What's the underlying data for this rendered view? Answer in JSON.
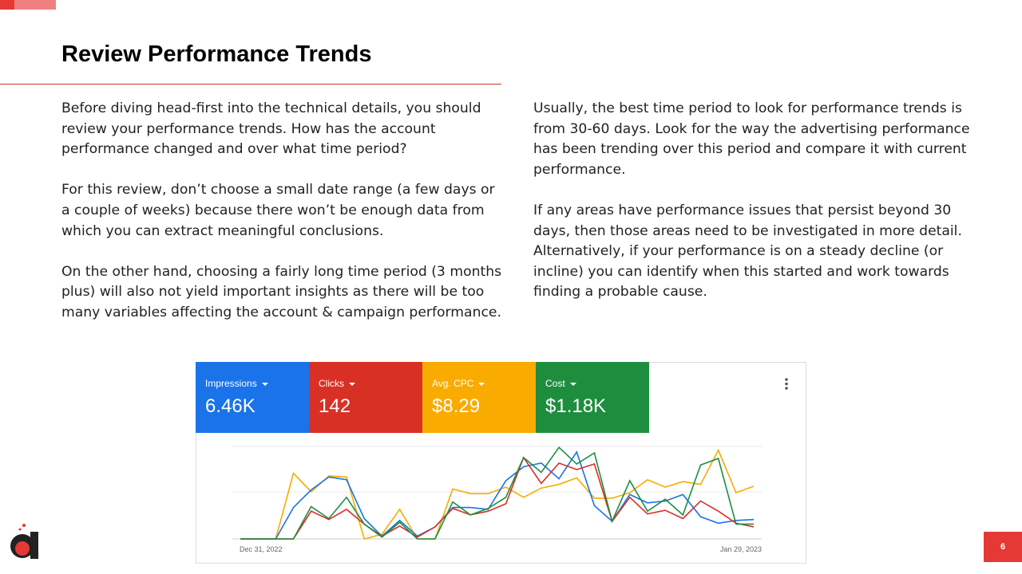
{
  "title": "Review Performance Trends",
  "left_paragraphs": [
    "Before diving head-first into the technical details, you should review your performance trends. How has the account performance changed and over what time period?",
    "For this review, don’t choose a small date range (a few days or a couple of weeks) because there won’t be enough data from which you can extract meaningful conclusions.",
    "On the other hand, choosing a fairly long time period (3 months plus) will also not yield important insights as there will be too many variables affecting the account & campaign performance."
  ],
  "right_paragraphs": [
    "Usually, the best time period to look for performance trends is from 30-60 days. Look for the way the advertising performance has been trending over this period and compare it with current performance.",
    "If any areas have performance issues that persist beyond 30 days, then those areas need to be investigated in more detail. Alternatively, if your performance is on a steady decline (or incline) you can identify when this started and work towards finding a probable cause."
  ],
  "metrics": [
    {
      "label": "Impressions",
      "value": "6.46K",
      "color": "#1a73e8"
    },
    {
      "label": "Clicks",
      "value": "142",
      "color": "#d93025"
    },
    {
      "label": "Avg. CPC",
      "value": "$8.29",
      "color": "#f9ab00"
    },
    {
      "label": "Cost",
      "value": "$1.18K",
      "color": "#1e8e3e"
    }
  ],
  "page_number": "6",
  "chart_data": {
    "type": "line",
    "categories": [
      "Dec 31, 2022",
      null,
      null,
      null,
      null,
      null,
      null,
      null,
      null,
      null,
      null,
      null,
      null,
      null,
      null,
      null,
      null,
      null,
      null,
      null,
      null,
      null,
      null,
      null,
      null,
      null,
      null,
      null,
      null,
      "Jan 29, 2023"
    ],
    "ylim": [
      0,
      100
    ],
    "series": [
      {
        "name": "Avg. CPC",
        "color": "#f9ab00",
        "values": [
          0,
          0,
          0,
          71,
          51,
          68,
          67,
          0,
          5,
          32,
          0,
          0,
          54,
          49,
          49,
          56,
          45,
          55,
          59,
          66,
          44,
          44,
          50,
          64,
          56,
          62,
          59,
          96,
          50,
          57
        ]
      },
      {
        "name": "Impressions",
        "color": "#1a73e8",
        "values": [
          0,
          0,
          0,
          34,
          53,
          67,
          64,
          22,
          3,
          20,
          3,
          13,
          34,
          34,
          32,
          63,
          78,
          82,
          65,
          94,
          36,
          19,
          48,
          39,
          41,
          48,
          24,
          17,
          20,
          21
        ]
      },
      {
        "name": "Clicks",
        "color": "#d93025",
        "values": [
          0,
          0,
          0,
          0,
          30,
          21,
          32,
          16,
          3,
          14,
          2,
          13,
          33,
          26,
          30,
          38,
          88,
          60,
          82,
          75,
          81,
          19,
          45,
          27,
          31,
          22,
          41,
          30,
          17,
          13
        ]
      },
      {
        "name": "Cost",
        "color": "#1e8e3e",
        "values": [
          0,
          0,
          0,
          0,
          35,
          22,
          45,
          16,
          2,
          18,
          0,
          0,
          40,
          26,
          33,
          45,
          88,
          72,
          99,
          81,
          93,
          19,
          63,
          30,
          43,
          26,
          80,
          87,
          16,
          16
        ]
      }
    ]
  }
}
